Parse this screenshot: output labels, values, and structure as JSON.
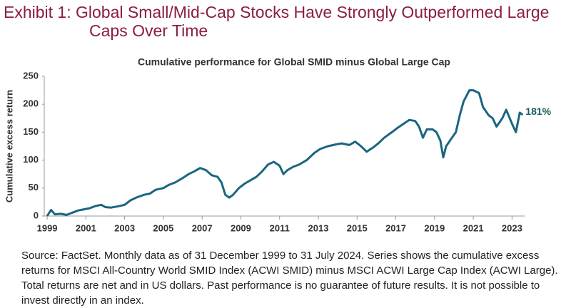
{
  "chart_data": {
    "type": "line",
    "title": "Exhibit 1: Global Small/Mid-Cap Stocks Have Strongly Outperformed Large Caps Over Time",
    "subtitle": "Cumulative performance for Global SMID minus Global Large Cap",
    "y_label": "Cumulative excess return",
    "source": "Source: FactSet. Monthly data as of 31 December 1999 to 31 July 2024. Series shows the cumulative excess returns for MSCI All-Country World SMID Index (ACWI SMID) minus MSCI ACWI Large Cap Index (ACWI Large). Total returns are net and in US dollars. Past performance is no guarantee of future results. It is not possible to invest directly in an index.",
    "color": "#1a6680",
    "label_color": "#1a5c5c",
    "xlim": [
      1998.85,
      2023.65
    ],
    "xticks": [
      1999,
      2001,
      2003,
      2005,
      2007,
      2009,
      2011,
      2013,
      2015,
      2017,
      2019,
      2021,
      2023
    ],
    "ylim": [
      0,
      250
    ],
    "yticks": [
      0,
      50,
      100,
      150,
      200,
      250
    ],
    "grid": false,
    "x": [
      1999.0,
      1999.2,
      1999.4,
      1999.7,
      2000.0,
      2000.3,
      2000.6,
      2000.9,
      2001.2,
      2001.5,
      2001.8,
      2002.0,
      2002.3,
      2002.6,
      2003.0,
      2003.3,
      2003.6,
      2004.0,
      2004.3,
      2004.6,
      2005.0,
      2005.3,
      2005.6,
      2006.0,
      2006.3,
      2006.6,
      2006.9,
      2007.2,
      2007.5,
      2007.8,
      2008.0,
      2008.2,
      2008.4,
      2008.6,
      2008.9,
      2009.2,
      2009.5,
      2009.8,
      2010.1,
      2010.4,
      2010.7,
      2011.0,
      2011.2,
      2011.4,
      2011.7,
      2012.0,
      2012.4,
      2012.8,
      2013.1,
      2013.5,
      2013.9,
      2014.2,
      2014.6,
      2014.9,
      2015.2,
      2015.5,
      2015.8,
      2016.1,
      2016.4,
      2016.8,
      2017.1,
      2017.4,
      2017.7,
      2018.0,
      2018.2,
      2018.4,
      2018.6,
      2018.9,
      2019.1,
      2019.3,
      2019.45,
      2019.6,
      2019.9,
      2020.1,
      2020.3,
      2020.5,
      2020.8,
      2021.0,
      2021.3,
      2021.5,
      2021.8,
      2022.0,
      2022.2,
      2022.5,
      2022.7,
      2023.0,
      2023.2,
      2023.4,
      2023.55
    ],
    "values": [
      0,
      11,
      3,
      4,
      2,
      6,
      10,
      12,
      14,
      18,
      20,
      16,
      15,
      17,
      20,
      28,
      33,
      38,
      40,
      47,
      50,
      56,
      60,
      68,
      75,
      80,
      86,
      82,
      73,
      70,
      60,
      38,
      33,
      38,
      50,
      58,
      64,
      70,
      80,
      92,
      97,
      90,
      75,
      82,
      88,
      92,
      100,
      113,
      120,
      125,
      128,
      130,
      127,
      133,
      125,
      115,
      122,
      130,
      140,
      150,
      158,
      165,
      172,
      170,
      160,
      140,
      155,
      155,
      150,
      135,
      105,
      125,
      140,
      150,
      180,
      205,
      225,
      225,
      220,
      195,
      180,
      175,
      160,
      175,
      190,
      165,
      150,
      185,
      181
    ],
    "value_labels": [
      null,
      null,
      null,
      null,
      null,
      null,
      null,
      null,
      null,
      null,
      null,
      null,
      null,
      null,
      null,
      null,
      null,
      null,
      null,
      null,
      null,
      null,
      null,
      null,
      null,
      null,
      null,
      null,
      null,
      null,
      null,
      null,
      null,
      null,
      null,
      null,
      null,
      null,
      null,
      null,
      null,
      null,
      null,
      null,
      null,
      null,
      null,
      null,
      null,
      null,
      null,
      null,
      null,
      null,
      null,
      null,
      null,
      null,
      null,
      null,
      null,
      null,
      null,
      null,
      null,
      null,
      null,
      null,
      null,
      null,
      null,
      null,
      null,
      null,
      null,
      null,
      null,
      null,
      null,
      null,
      null,
      null,
      null,
      null,
      null,
      null,
      null,
      null,
      "181%"
    ]
  }
}
